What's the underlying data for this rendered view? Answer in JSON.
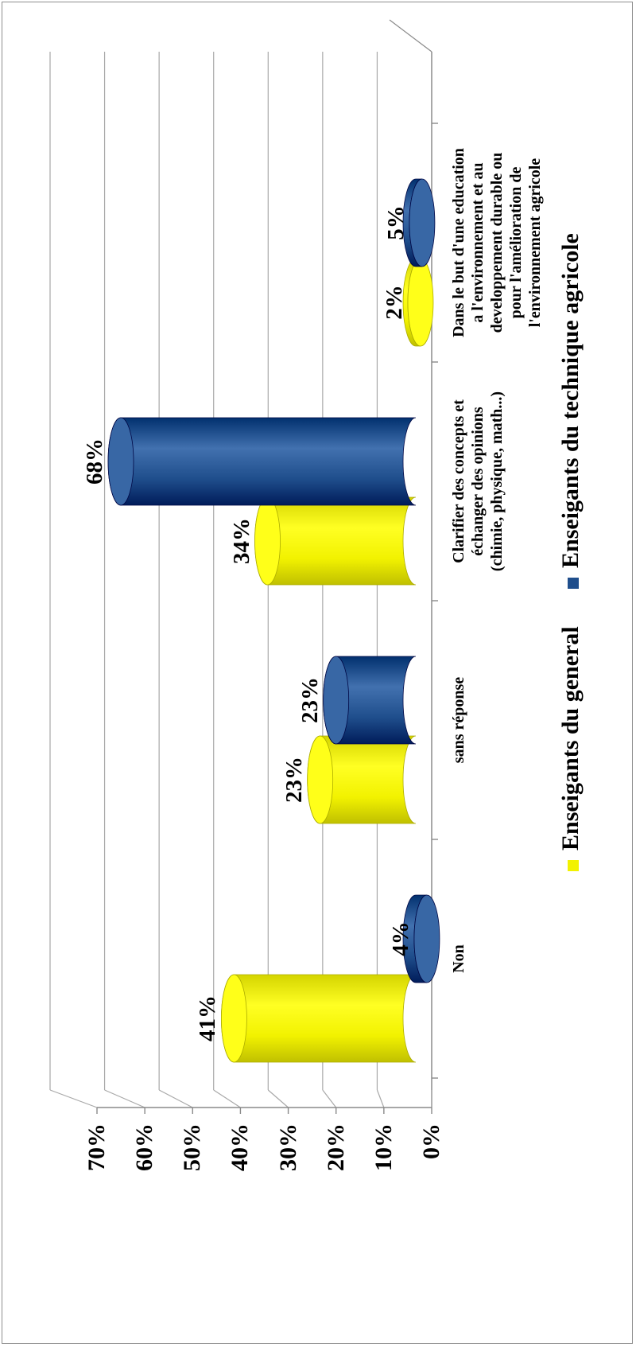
{
  "chart_data": {
    "type": "bar",
    "orientation": "vertical-rotated",
    "categories": [
      "Non",
      "sans réponse",
      "Clarifier des concepts et échanger des opinions (chimie, physique, math...)",
      "Dans le but d'une education a l'environnement et au developpement durable ou pour l'amélioration de l'environnement agricole"
    ],
    "category_lines": [
      [
        "Non"
      ],
      [
        "sans réponse"
      ],
      [
        "Clarifier des concepts et",
        "échanger des opinions",
        "(chimie, physique, math...)"
      ],
      [
        "Dans le but d'une education",
        "a l'environnement et au",
        "developpement durable ou",
        "pour l'amélioration de",
        "l'environnement agricole"
      ]
    ],
    "series": [
      {
        "name": "Enseigants du general",
        "values": [
          41,
          23,
          34,
          2
        ],
        "labels": [
          "41%",
          "23%",
          "34%",
          "2%"
        ],
        "color": "#f2f200"
      },
      {
        "name": "Enseigants du technique agricole",
        "values": [
          4,
          23,
          68,
          5
        ],
        "labels": [
          "4%",
          "23%",
          "68%",
          "5%"
        ],
        "color": "#1f4e8c"
      }
    ],
    "ylim": [
      0,
      70
    ],
    "yticks": [
      "0%",
      "10%",
      "20%",
      "30%",
      "40%",
      "50%",
      "60%",
      "70%"
    ],
    "title": "",
    "xlabel": "",
    "ylabel": "",
    "grid": true,
    "legend": "bottom"
  }
}
